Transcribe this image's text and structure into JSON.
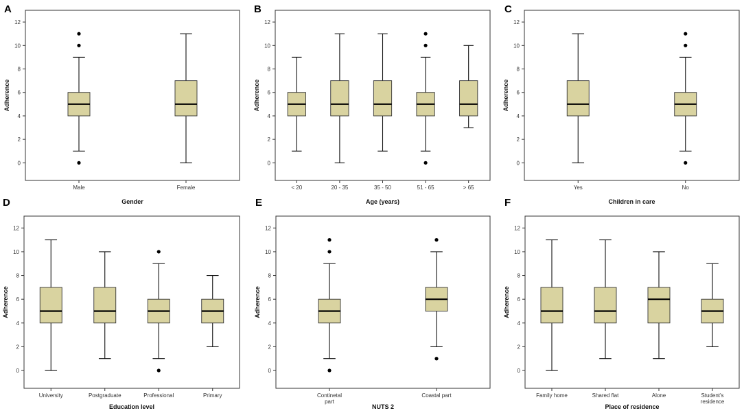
{
  "figure": {
    "box_fill": "#d9d3a0",
    "box_stroke": "#333333"
  },
  "chart_data": [
    {
      "type": "boxplot",
      "panel_label": "A",
      "xlabel": "Gender",
      "ylabel": "Adherence",
      "ylim": [
        -1.5,
        13
      ],
      "yticks": [
        0,
        2,
        4,
        6,
        8,
        10,
        12
      ],
      "ytick_labels": [
        "0",
        "2",
        "4",
        "6",
        "8",
        "10",
        "12"
      ],
      "categories": [
        "Male",
        "Female"
      ],
      "boxes": [
        {
          "whisker_low": 1,
          "q1": 4,
          "median": 5,
          "q3": 6,
          "whisker_high": 9,
          "outliers": [
            0,
            10,
            11
          ]
        },
        {
          "whisker_low": 0,
          "q1": 4,
          "median": 5,
          "q3": 7,
          "whisker_high": 11,
          "outliers": []
        }
      ]
    },
    {
      "type": "boxplot",
      "panel_label": "B",
      "xlabel": "Age (years)",
      "ylabel": "Adherence",
      "ylim": [
        -1.5,
        13
      ],
      "yticks": [
        0,
        2,
        4,
        6,
        8,
        10,
        12
      ],
      "ytick_labels": [
        "0",
        "2",
        "4",
        "6",
        "8",
        "10",
        "12"
      ],
      "categories": [
        "< 20",
        "20 - 35",
        "35 - 50",
        "51 - 65",
        "> 65"
      ],
      "boxes": [
        {
          "whisker_low": 1,
          "q1": 4,
          "median": 5,
          "q3": 6,
          "whisker_high": 9,
          "outliers": []
        },
        {
          "whisker_low": 0,
          "q1": 4,
          "median": 5,
          "q3": 7,
          "whisker_high": 11,
          "outliers": []
        },
        {
          "whisker_low": 1,
          "q1": 4,
          "median": 5,
          "q3": 7,
          "whisker_high": 11,
          "outliers": []
        },
        {
          "whisker_low": 1,
          "q1": 4,
          "median": 5,
          "q3": 6,
          "whisker_high": 9,
          "outliers": [
            0,
            10,
            11
          ]
        },
        {
          "whisker_low": 3,
          "q1": 4,
          "median": 5,
          "q3": 7,
          "whisker_high": 10,
          "outliers": []
        }
      ]
    },
    {
      "type": "boxplot",
      "panel_label": "C",
      "xlabel": "Children in care",
      "ylabel": "Adherence",
      "ylim": [
        -1.5,
        13
      ],
      "yticks": [
        0,
        2,
        4,
        6,
        8,
        10,
        12
      ],
      "ytick_labels": [
        "0",
        "2",
        "4",
        "6",
        "8",
        "10",
        "12"
      ],
      "categories": [
        "Yes",
        "No"
      ],
      "boxes": [
        {
          "whisker_low": 0,
          "q1": 4,
          "median": 5,
          "q3": 7,
          "whisker_high": 11,
          "outliers": []
        },
        {
          "whisker_low": 1,
          "q1": 4,
          "median": 5,
          "q3": 6,
          "whisker_high": 9,
          "outliers": [
            0,
            10,
            11
          ]
        }
      ]
    },
    {
      "type": "boxplot",
      "panel_label": "D",
      "xlabel": "Education level",
      "ylabel": "Adherence",
      "ylim": [
        -1.5,
        13
      ],
      "yticks": [
        0,
        2,
        4,
        6,
        8,
        10,
        12
      ],
      "ytick_labels": [
        "0",
        "2",
        "4",
        "6",
        "8",
        "10",
        "12"
      ],
      "categories": [
        "University",
        "Postgraduate",
        "Professional",
        "Primary"
      ],
      "boxes": [
        {
          "whisker_low": 0,
          "q1": 4,
          "median": 5,
          "q3": 7,
          "whisker_high": 11,
          "outliers": []
        },
        {
          "whisker_low": 1,
          "q1": 4,
          "median": 5,
          "q3": 7,
          "whisker_high": 10,
          "outliers": []
        },
        {
          "whisker_low": 1,
          "q1": 4,
          "median": 5,
          "q3": 6,
          "whisker_high": 9,
          "outliers": [
            0,
            10
          ]
        },
        {
          "whisker_low": 2,
          "q1": 4,
          "median": 5,
          "q3": 6,
          "whisker_high": 8,
          "outliers": []
        }
      ]
    },
    {
      "type": "boxplot",
      "panel_label": "E",
      "xlabel": "NUTS 2",
      "ylabel": "Adherence",
      "ylim": [
        -1.5,
        13
      ],
      "yticks": [
        0,
        2,
        4,
        6,
        8,
        10,
        12
      ],
      "ytick_labels": [
        "0",
        "2",
        "4",
        "6",
        "8",
        "10",
        "12"
      ],
      "categories": [
        "Continetal part",
        "Coastal part"
      ],
      "boxes": [
        {
          "whisker_low": 1,
          "q1": 4,
          "median": 5,
          "q3": 6,
          "whisker_high": 9,
          "outliers": [
            0,
            10,
            11
          ]
        },
        {
          "whisker_low": 2,
          "q1": 5,
          "median": 6,
          "q3": 7,
          "whisker_high": 10,
          "outliers": [
            1,
            11
          ]
        }
      ]
    },
    {
      "type": "boxplot",
      "panel_label": "F",
      "xlabel": "Place of residence",
      "ylabel": "Adherence",
      "ylim": [
        -1.5,
        13
      ],
      "yticks": [
        0,
        2,
        4,
        6,
        8,
        10,
        12
      ],
      "ytick_labels": [
        "0",
        "2",
        "4",
        "6",
        "8",
        "10",
        "12"
      ],
      "categories": [
        "Family home",
        "Shared flat",
        "Alone",
        "Student's residence"
      ],
      "boxes": [
        {
          "whisker_low": 0,
          "q1": 4,
          "median": 5,
          "q3": 7,
          "whisker_high": 11,
          "outliers": []
        },
        {
          "whisker_low": 1,
          "q1": 4,
          "median": 5,
          "q3": 7,
          "whisker_high": 11,
          "outliers": []
        },
        {
          "whisker_low": 1,
          "q1": 4,
          "median": 6,
          "q3": 7,
          "whisker_high": 10,
          "outliers": []
        },
        {
          "whisker_low": 2,
          "q1": 4,
          "median": 5,
          "q3": 6,
          "whisker_high": 9,
          "outliers": []
        }
      ]
    }
  ]
}
